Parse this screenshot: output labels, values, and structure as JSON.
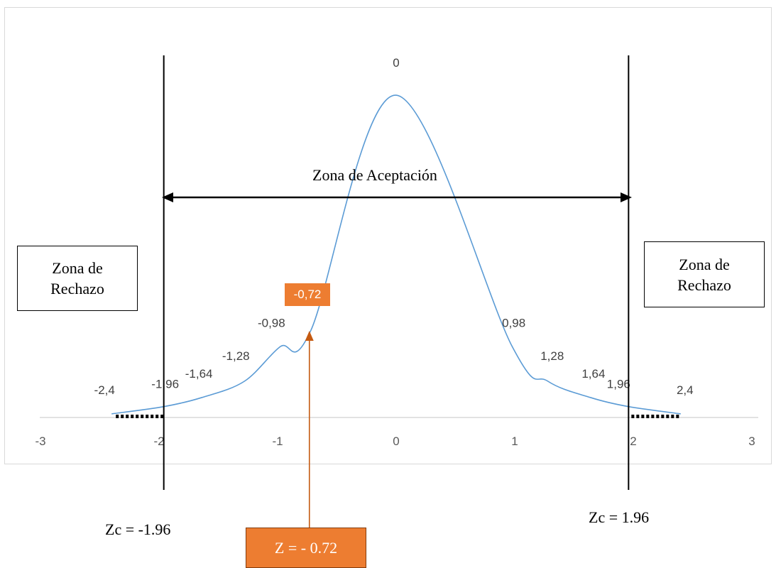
{
  "chart_data": {
    "type": "line",
    "title": "",
    "xlabel": "",
    "ylabel": "",
    "xlim": [
      -3,
      3
    ],
    "x_ticks": [
      "-3",
      "-2",
      "-1",
      "0",
      "1",
      "2",
      "3"
    ],
    "grid": false,
    "legend": "none",
    "series": [
      {
        "color": "#5b9bd5",
        "points": [
          {
            "x": -2.4,
            "y": 0.02,
            "label": "-2,4"
          },
          {
            "x": -1.96,
            "y": 0.06,
            "label": "-1,96"
          },
          {
            "x": -1.64,
            "y": 0.11,
            "label": "-1,64"
          },
          {
            "x": -1.28,
            "y": 0.2,
            "label": "-1,28"
          },
          {
            "x": -0.98,
            "y": 0.39,
            "label": "-0,98"
          },
          {
            "x": -0.72,
            "y": 0.48,
            "label": "-0,72"
          },
          {
            "x": 0,
            "y": 1.78,
            "label": "0"
          },
          {
            "x": 0.98,
            "y": 0.39,
            "label": "0,98"
          },
          {
            "x": 1.28,
            "y": 0.2,
            "label": "1,28"
          },
          {
            "x": 1.64,
            "y": 0.11,
            "label": "1,64"
          },
          {
            "x": 1.96,
            "y": 0.06,
            "label": "1,96"
          },
          {
            "x": 2.4,
            "y": 0.02,
            "label": "2,4"
          }
        ]
      }
    ],
    "critical_lines": [
      {
        "x": -1.96,
        "label": "Zc = -1.96"
      },
      {
        "x": 1.96,
        "label": "Zc = 1.96"
      }
    ],
    "z_statistic": {
      "x": -0.72,
      "label": "Z = - 0.72",
      "color": "#ed7d31"
    },
    "annotations": {
      "acceptance": "Zona de Aceptación",
      "rejection_left": [
        "Zona de",
        "Rechazo"
      ],
      "rejection_right": [
        "Zona de",
        "Rechazo"
      ]
    }
  }
}
